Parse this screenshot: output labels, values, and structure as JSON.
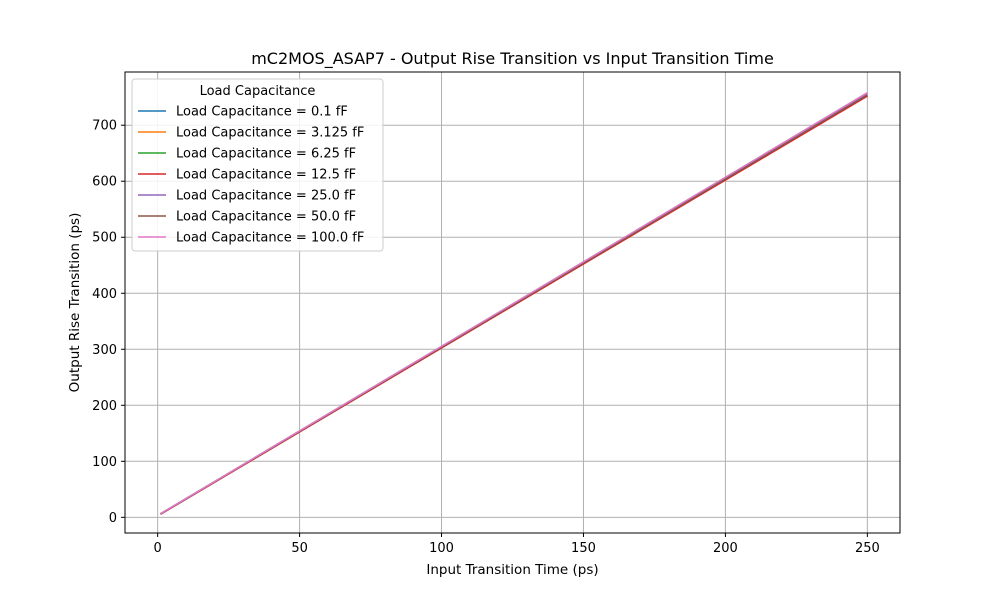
{
  "chart_data": {
    "type": "line",
    "title": "mC2MOS_ASAP7 - Output Rise Transition vs Input Transition Time",
    "xlabel": "Input Transition Time (ps)",
    "ylabel": "Output Rise Transition (ps)",
    "xlim": [
      -11.5,
      261.5
    ],
    "ylim": [
      -28,
      795
    ],
    "xticks": [
      0,
      50,
      100,
      150,
      200,
      250
    ],
    "yticks": [
      0,
      100,
      200,
      300,
      400,
      500,
      600,
      700
    ],
    "grid": true,
    "legend": {
      "title": "Load Capacitance",
      "placement": "top-left"
    },
    "x": [
      1,
      250
    ],
    "series": [
      {
        "name": "Load Capacitance = 0.1 fF",
        "color": "#1f77b4",
        "values": [
          5.5,
          753
        ]
      },
      {
        "name": "Load Capacitance = 3.125 fF",
        "color": "#ff7f0e",
        "values": [
          5.6,
          753
        ]
      },
      {
        "name": "Load Capacitance = 6.25 fF",
        "color": "#2ca02c",
        "values": [
          5.7,
          753
        ]
      },
      {
        "name": "Load Capacitance = 12.5 fF",
        "color": "#d62728",
        "values": [
          5.8,
          752
        ]
      },
      {
        "name": "Load Capacitance = 25.0 fF",
        "color": "#9467bd",
        "values": [
          6.0,
          757
        ]
      },
      {
        "name": "Load Capacitance = 50.0 fF",
        "color": "#8c564b",
        "values": [
          6.2,
          754
        ]
      },
      {
        "name": "Load Capacitance = 100.0 fF",
        "color": "#e377c2",
        "values": [
          6.5,
          758
        ]
      }
    ]
  }
}
